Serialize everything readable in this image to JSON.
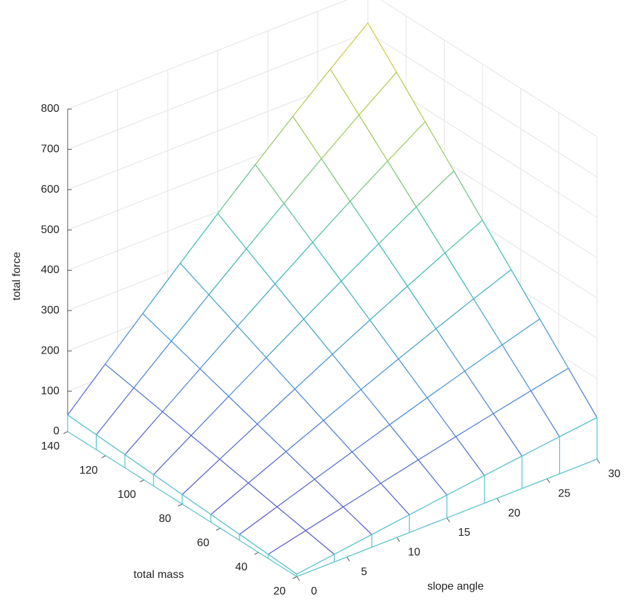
{
  "chart_data": {
    "type": "mesh",
    "xlabel": "slope angle",
    "ylabel": "total mass",
    "zlabel": "total force",
    "x": [
      0,
      3.75,
      7.5,
      11.25,
      15,
      18.75,
      22.5,
      26.25,
      30
    ],
    "y": [
      20,
      35,
      50,
      65,
      80,
      95,
      110,
      125,
      140
    ],
    "z": [
      [
        5.9,
        18.7,
        31.4,
        44.0,
        56.5,
        68.6,
        80.5,
        92.1,
        103.2
      ],
      [
        10.3,
        32.7,
        55.0,
        77.1,
        98.8,
        120.1,
        140.9,
        161.1,
        180.6
      ],
      [
        14.7,
        46.7,
        78.6,
        110.1,
        141.2,
        171.6,
        201.3,
        230.1,
        258.0
      ],
      [
        19.1,
        60.8,
        102.2,
        143.1,
        183.5,
        223.0,
        261.7,
        299.2,
        335.4
      ],
      [
        23.5,
        74.8,
        125.7,
        176.2,
        225.9,
        274.5,
        322.1,
        368.2,
        412.8
      ],
      [
        28.0,
        88.8,
        149.3,
        209.2,
        268.2,
        326.0,
        382.5,
        437.3,
        490.2
      ],
      [
        32.4,
        102.8,
        172.9,
        242.3,
        310.6,
        377.5,
        442.9,
        506.3,
        567.6
      ],
      [
        36.8,
        116.9,
        196.5,
        275.3,
        352.9,
        428.9,
        503.3,
        575.4,
        645.0
      ],
      [
        41.2,
        130.9,
        220.0,
        308.3,
        395.3,
        480.4,
        563.6,
        644.4,
        722.4
      ]
    ],
    "xlim": [
      0,
      30
    ],
    "xticks": [
      0,
      5,
      10,
      15,
      20,
      25,
      30
    ],
    "ylim": [
      20,
      140
    ],
    "yticks": [
      20,
      40,
      60,
      80,
      100,
      120,
      140
    ],
    "zlim": [
      0,
      800
    ],
    "zticks": [
      0,
      100,
      200,
      300,
      400,
      500,
      600,
      700,
      800
    ],
    "grid": true,
    "colormap": [
      "#5b4fc9",
      "#4a8fd8",
      "#3bbfb5",
      "#a3c95a",
      "#d9cc3f"
    ],
    "curtain_color": "#5cc6d0"
  }
}
